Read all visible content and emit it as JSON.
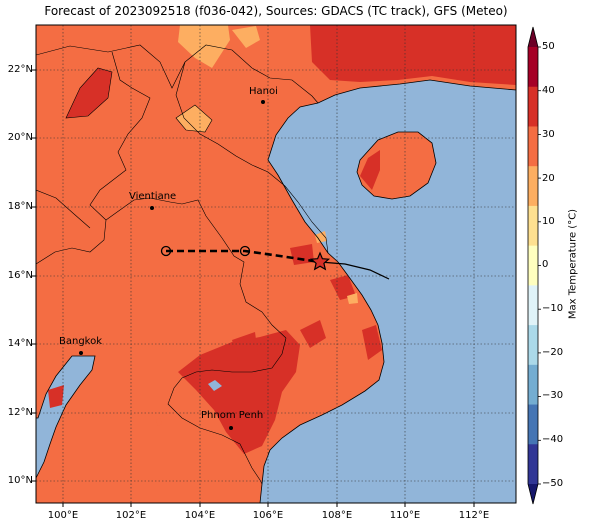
{
  "title": "Forecast of 2023092518 (f036-042), Sources: GDACS (TC track), GFS (Meteo)",
  "lat_ticks": [
    "22°N",
    "20°N",
    "18°N",
    "16°N",
    "14°N",
    "12°N",
    "10°N"
  ],
  "lon_ticks": [
    "100°E",
    "102°E",
    "104°E",
    "106°E",
    "108°E",
    "110°E",
    "112°E"
  ],
  "cities": [
    {
      "name": "Hanoi"
    },
    {
      "name": "Vientiane"
    },
    {
      "name": "Bangkok"
    },
    {
      "name": "Phnom Penh"
    }
  ],
  "colorbar": {
    "label": "Max Temperature (°C)",
    "ticks": [
      "50",
      "40",
      "30",
      "20",
      "10",
      "0",
      "−10",
      "−20",
      "−30",
      "−40",
      "−50"
    ],
    "colors": [
      "#6b0026",
      "#a50026",
      "#d73027",
      "#f46d43",
      "#fdae61",
      "#fee090",
      "#ffffbf",
      "#e0f3f8",
      "#abd9e9",
      "#74add1",
      "#4575b4",
      "#313695",
      "#16176b"
    ]
  },
  "track": {
    "past_positions": [
      "102.9E 16.7N",
      "105.3E 16.7N"
    ],
    "current_position": "107.5E 16.4N"
  },
  "colors": {
    "land_main": "#f46d43",
    "land_hot": "#d73027",
    "land_warm": "#fdae61",
    "ocean": "#91b5d9"
  }
}
